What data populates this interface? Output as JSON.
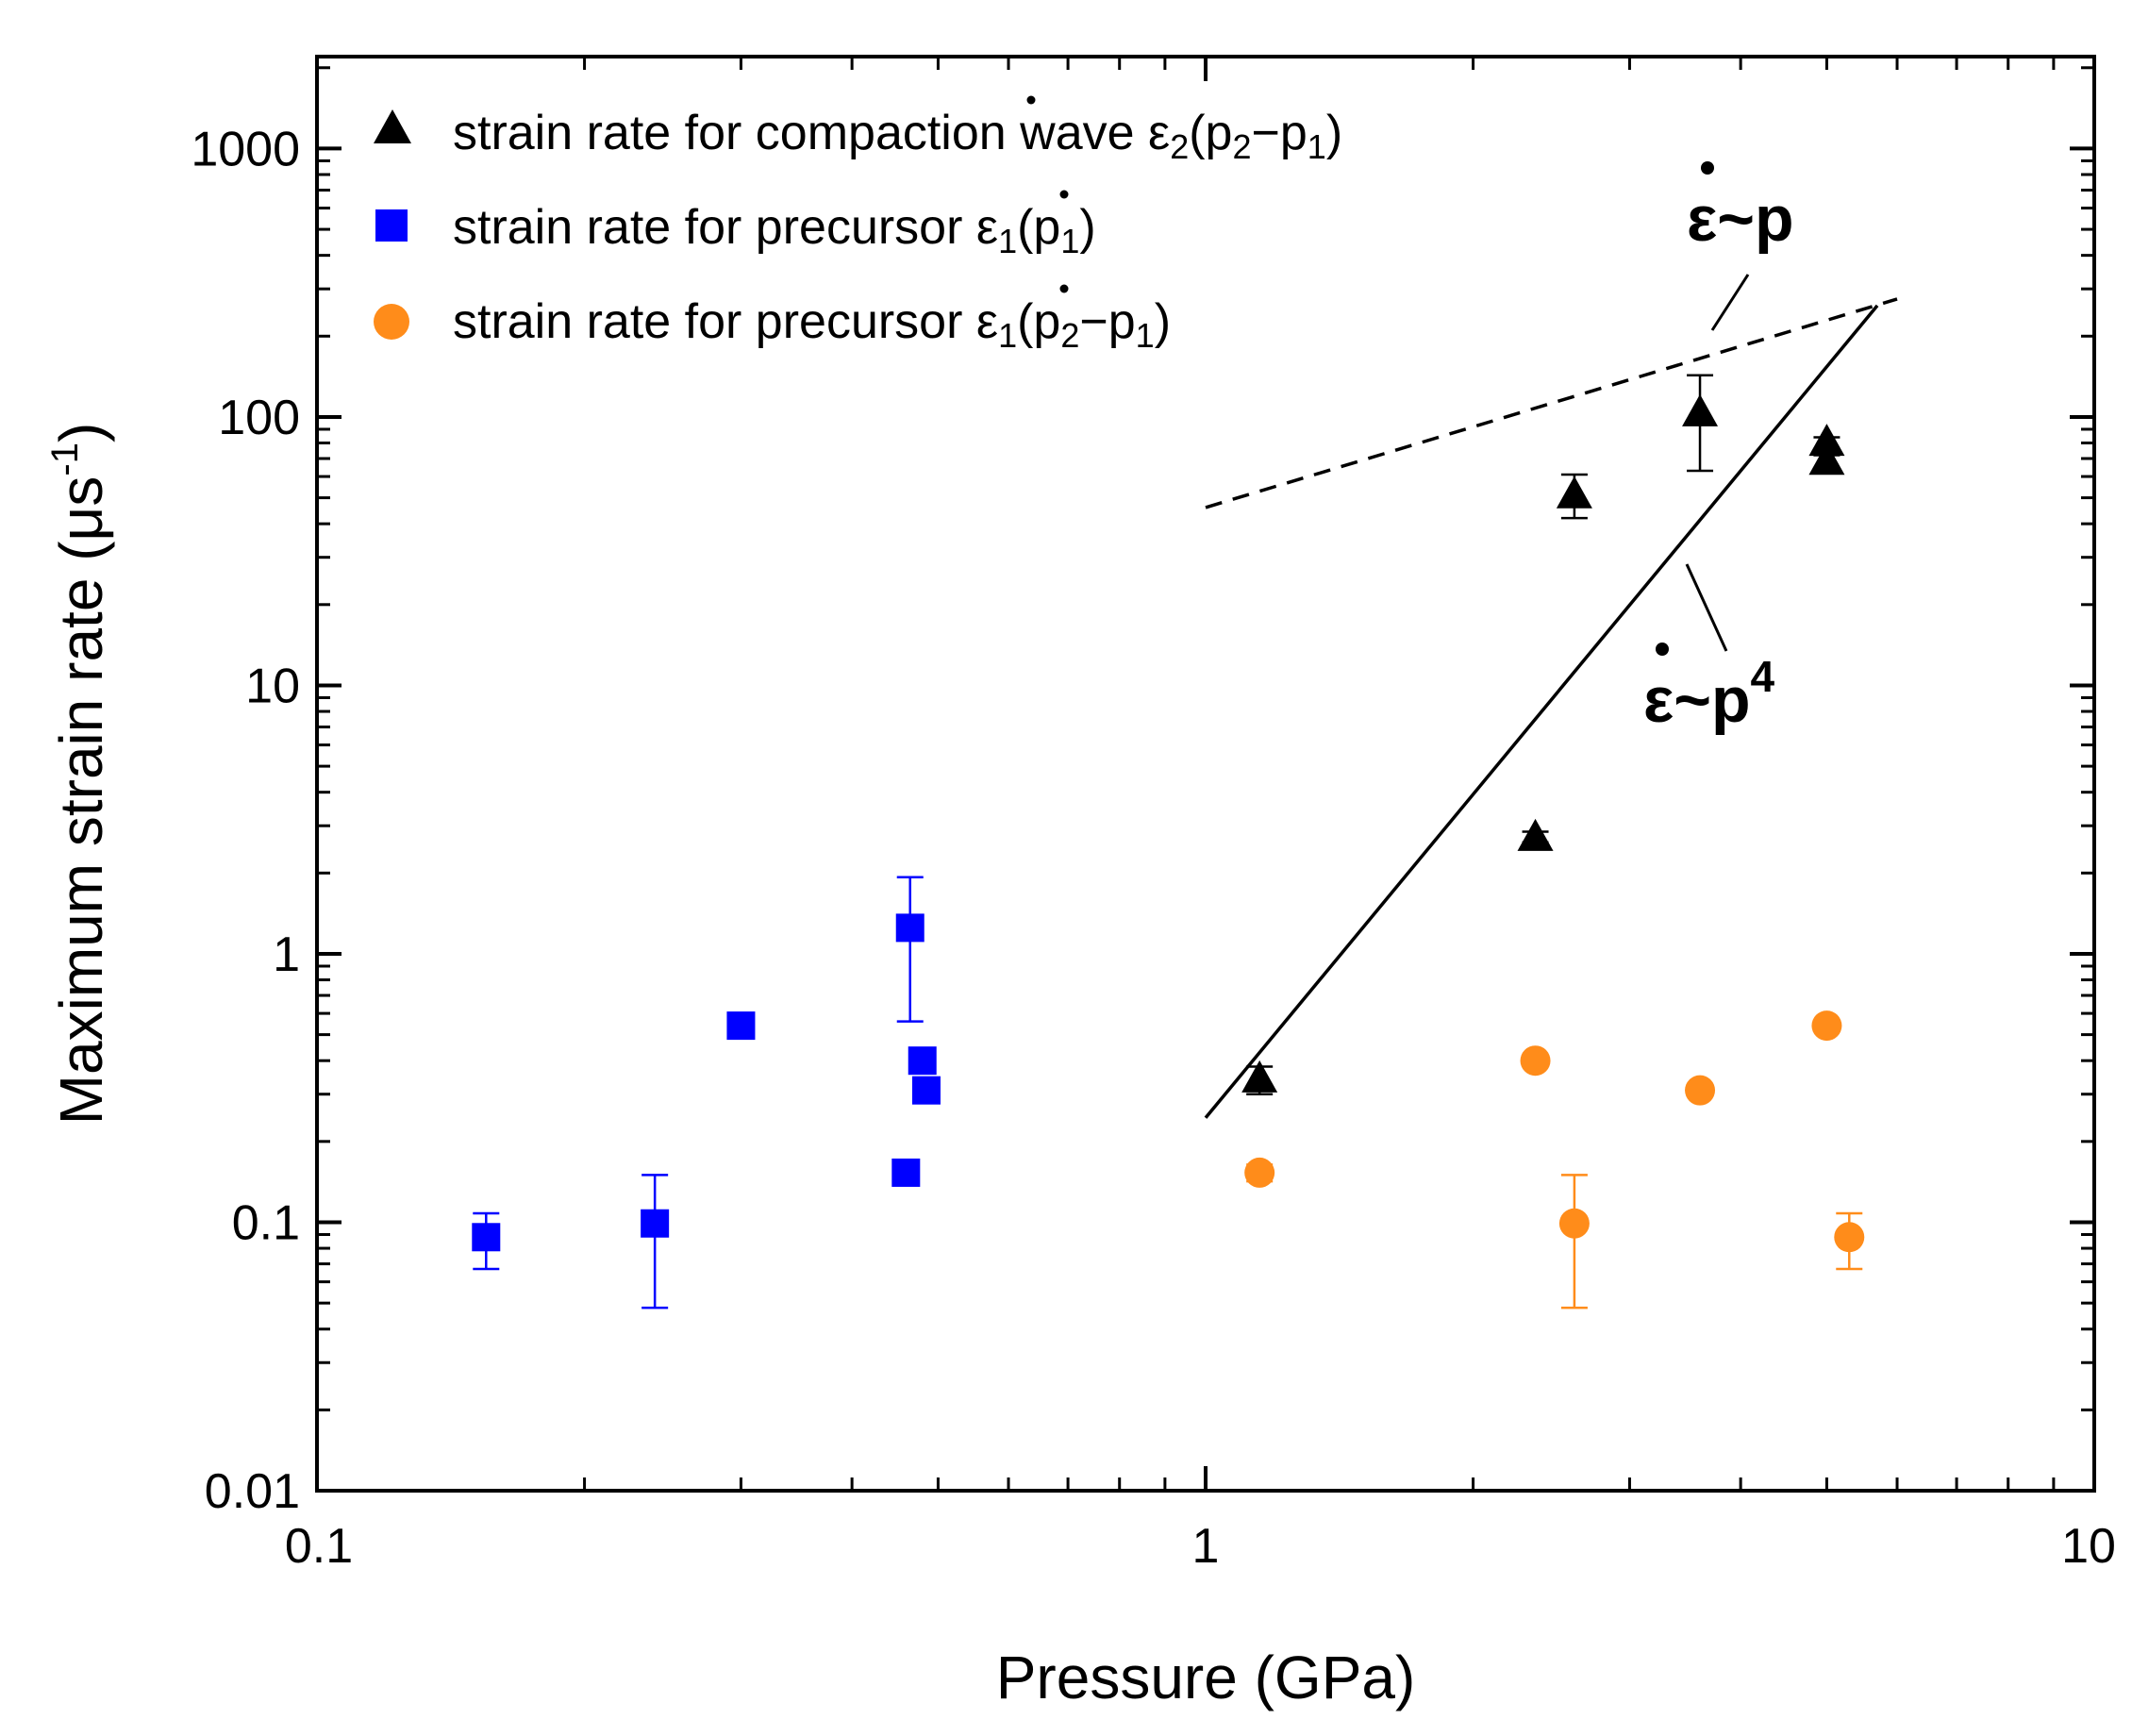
{
  "chart_data": {
    "type": "scatter",
    "xscale": "log",
    "yscale": "log",
    "xlim": [
      0.1,
      10
    ],
    "ylim": [
      0.01,
      2200
    ],
    "xlabel": "Pressure (GPa)",
    "ylabel_main": "Maximum strain rate (μs",
    "ylabel_sup": "-1",
    "ylabel_end": ")",
    "x_ticks": [
      {
        "value": 0.1,
        "label": "0.1"
      },
      {
        "value": 1,
        "label": "1"
      },
      {
        "value": 10,
        "label": "10"
      }
    ],
    "y_ticks": [
      {
        "value": 0.01,
        "label": "0.01"
      },
      {
        "value": 0.1,
        "label": "0.1"
      },
      {
        "value": 1,
        "label": "1"
      },
      {
        "value": 10,
        "label": "10"
      },
      {
        "value": 100,
        "label": "100"
      },
      {
        "value": 1000,
        "label": "1000"
      }
    ],
    "legend_position": "top-left",
    "series": [
      {
        "name": "strain rate for compaction wave ε̇2(p2−p1)",
        "legend": {
          "lead": "strain rate for compaction wave ",
          "symbol": "ε",
          "sub1": "2",
          "mid": "(p",
          "sub2": "2",
          "dash": "−p",
          "sub3": "1",
          "end": ")"
        },
        "marker": "triangle",
        "color": "#000000",
        "points": [
          {
            "x": 1.15,
            "y": 0.34,
            "ylo": 0.3,
            "yhi": 0.38
          },
          {
            "x": 2.35,
            "y": 2.7,
            "ylo": 2.6,
            "yhi": 2.85
          },
          {
            "x": 2.6,
            "y": 51,
            "ylo": 42,
            "yhi": 61
          },
          {
            "x": 3.6,
            "y": 103,
            "ylo": 63,
            "yhi": 143
          },
          {
            "x": 5.0,
            "y": 80,
            "ylo": 76,
            "yhi": 84
          },
          {
            "x": 5.0,
            "y": 68,
            "ylo": 64,
            "yhi": 72
          }
        ]
      },
      {
        "name": "strain rate for precursor ε̇1(p1)",
        "legend": {
          "lead": "strain rate for precursor ",
          "symbol": "ε",
          "sub1": "1",
          "mid": "(p",
          "sub2": "1",
          "end": ")"
        },
        "marker": "square",
        "color": "#0000ff",
        "points": [
          {
            "x": 0.155,
            "y": 0.088,
            "ylo": 0.067,
            "yhi": 0.108
          },
          {
            "x": 0.24,
            "y": 0.099,
            "ylo": 0.048,
            "yhi": 0.15
          },
          {
            "x": 0.3,
            "y": 0.54,
            "ylo": 0.52,
            "yhi": 0.56
          },
          {
            "x": 0.465,
            "y": 1.25,
            "ylo": 0.56,
            "yhi": 1.93
          },
          {
            "x": 0.48,
            "y": 0.4,
            "ylo": 0.38,
            "yhi": 0.42
          },
          {
            "x": 0.485,
            "y": 0.31,
            "ylo": 0.295,
            "yhi": 0.325
          },
          {
            "x": 0.46,
            "y": 0.153,
            "ylo": 0.146,
            "yhi": 0.16
          }
        ]
      },
      {
        "name": "strain rate for precursor ε̇1(p2−p1)",
        "legend": {
          "lead": "strain rate for precursor ",
          "symbol": "ε",
          "sub1": "1",
          "mid": "(p",
          "sub2": "2",
          "dash": "−p",
          "sub3": "1",
          "end": ")"
        },
        "marker": "circle",
        "color": "#ff8c1a",
        "points": [
          {
            "x": 1.15,
            "y": 0.153,
            "ylo": 0.142,
            "yhi": 0.164
          },
          {
            "x": 2.35,
            "y": 0.4,
            "ylo": 0.38,
            "yhi": 0.42
          },
          {
            "x": 2.6,
            "y": 0.099,
            "ylo": 0.048,
            "yhi": 0.15
          },
          {
            "x": 3.6,
            "y": 0.31,
            "ylo": 0.295,
            "yhi": 0.325
          },
          {
            "x": 5.0,
            "y": 0.54,
            "ylo": 0.52,
            "yhi": 0.56
          },
          {
            "x": 5.3,
            "y": 0.088,
            "ylo": 0.067,
            "yhi": 0.108
          }
        ]
      }
    ],
    "fit_lines": [
      {
        "name": "linear-fit",
        "style": "dashed",
        "label": "ε~p",
        "label_base": "ε~p",
        "x": [
          1.0,
          6.0
        ],
        "y": [
          46,
          275
        ]
      },
      {
        "name": "quartic-fit",
        "style": "solid",
        "label": "ε~p4",
        "label_base": "ε~p",
        "label_sup": "4",
        "x": [
          1.0,
          5.7
        ],
        "y": [
          0.245,
          260
        ]
      }
    ]
  }
}
